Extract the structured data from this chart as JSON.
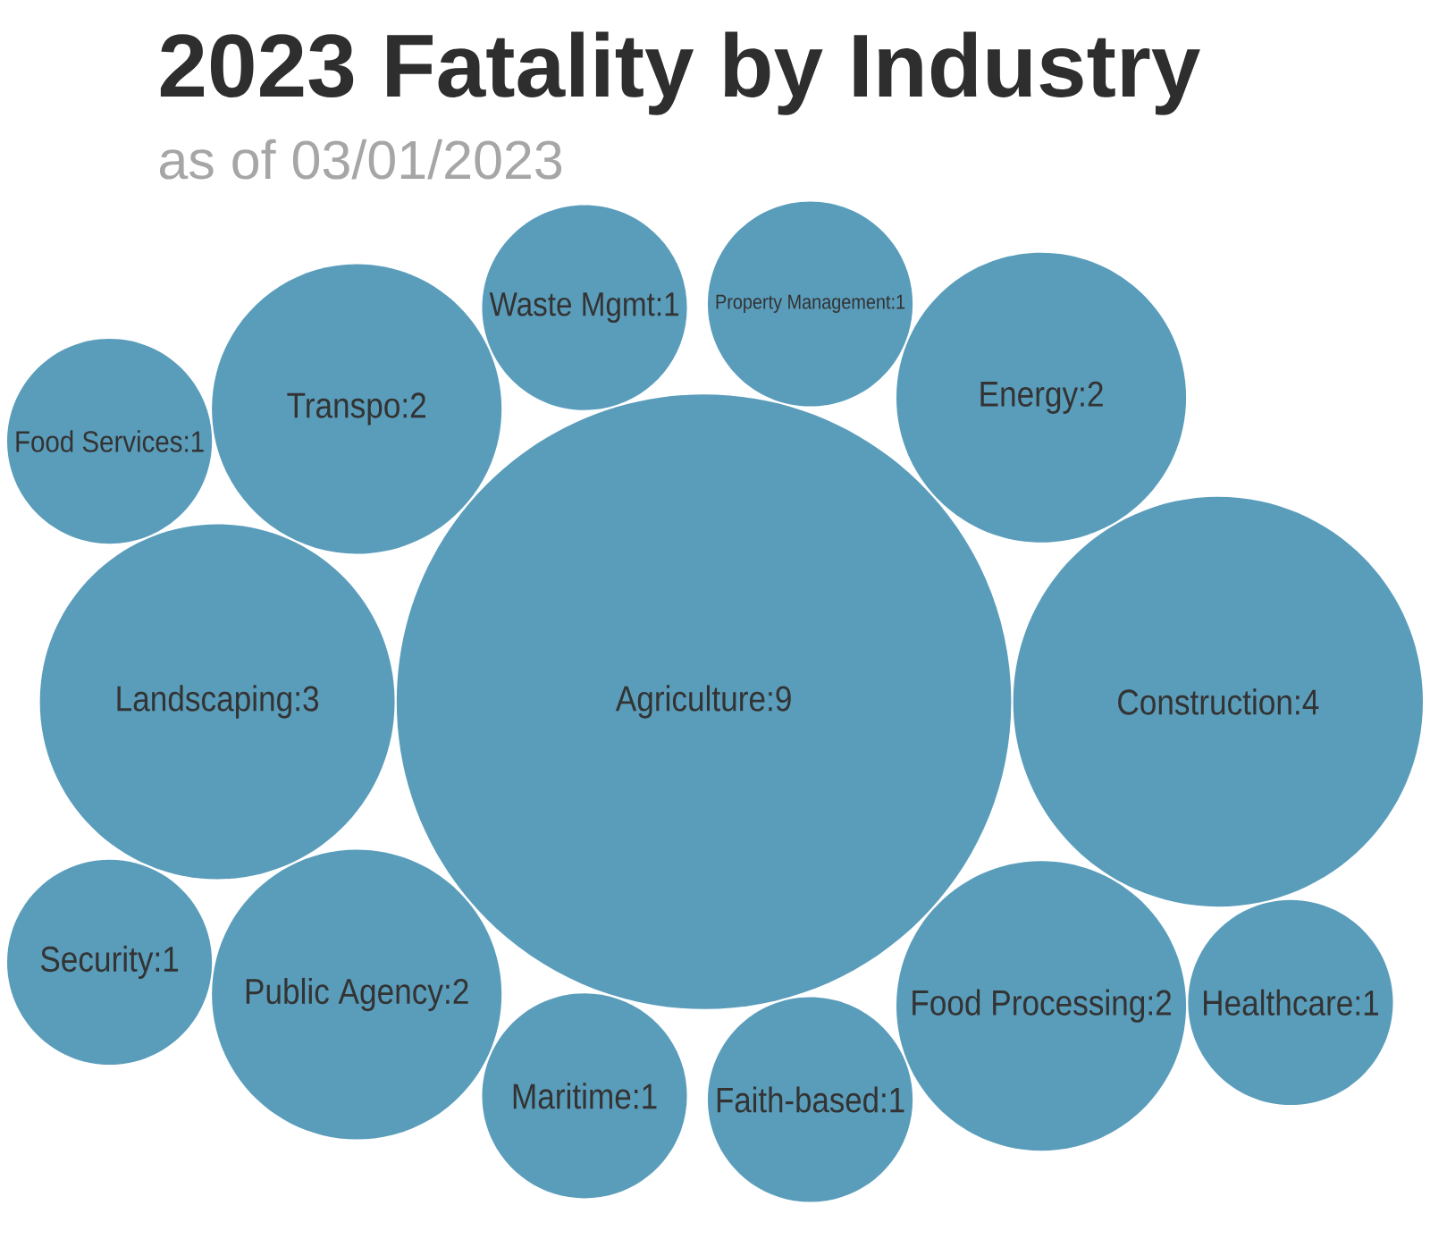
{
  "chart_data": {
    "type": "other",
    "title": "2023 Fatality by Industry",
    "subtitle": "as of 03/01/2023",
    "categories": [
      "Agriculture",
      "Construction",
      "Landscaping",
      "Transpo",
      "Public Agency",
      "Food Processing",
      "Energy",
      "Waste Mgmt",
      "Maritime",
      "Faith-based",
      "Property Management",
      "Food Services",
      "Security",
      "Healthcare"
    ],
    "values": [
      9,
      4,
      3,
      2,
      2,
      2,
      2,
      1,
      1,
      1,
      1,
      1,
      1,
      1
    ],
    "value_labels": [
      ":9",
      ":4",
      ":3",
      ":2",
      ":2",
      ":2",
      ":2",
      ":1",
      ":1",
      ":1",
      ":1",
      ":1",
      ":1",
      ":1"
    ],
    "color": "#5a9dbb"
  }
}
